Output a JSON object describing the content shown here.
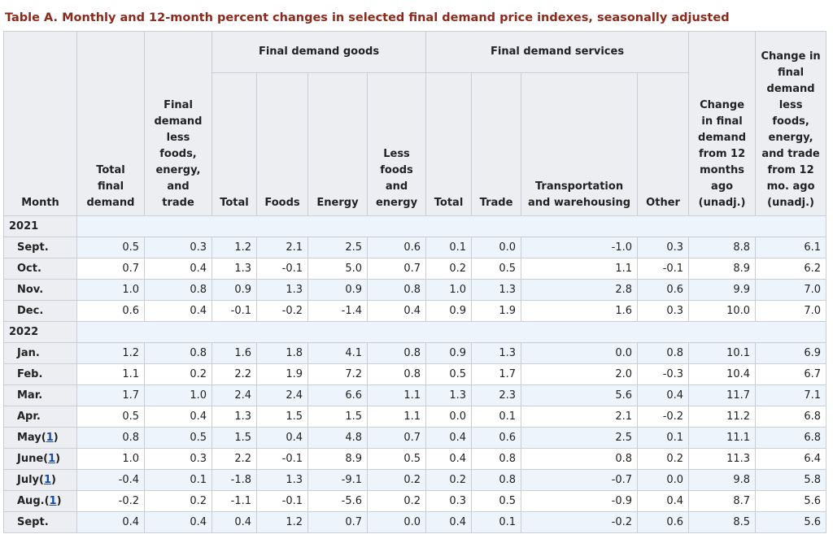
{
  "title": "Table A. Monthly and 12-month percent changes in selected final demand price indexes, seasonally adjusted",
  "headers": {
    "month": "Month",
    "total_final_demand": "Total final demand",
    "fd_less": "Final demand less foods, energy, and trade",
    "goods_group": "Final demand goods",
    "services_group": "Final demand services",
    "goods_total": "Total",
    "goods_foods": "Foods",
    "goods_energy": "Energy",
    "goods_less": "Less foods and energy",
    "serv_total": "Total",
    "serv_trade": "Trade",
    "serv_transport": "Transportation and warehousing",
    "serv_other": "Other",
    "change_12": "Change in final demand from 12 months ago (unadj.)",
    "change_less": "Change in final demand less foods, energy, and trade from 12 mo. ago (unadj.)"
  },
  "sections": [
    {
      "year": "2021",
      "rows": [
        {
          "month": "Sept.",
          "footnote": "",
          "values": [
            "0.5",
            "0.3",
            "1.2",
            "2.1",
            "2.5",
            "0.6",
            "0.1",
            "0.0",
            "-1.0",
            "0.3",
            "8.8",
            "6.1"
          ]
        },
        {
          "month": "Oct.",
          "footnote": "",
          "values": [
            "0.7",
            "0.4",
            "1.3",
            "-0.1",
            "5.0",
            "0.7",
            "0.2",
            "0.5",
            "1.1",
            "-0.1",
            "8.9",
            "6.2"
          ]
        },
        {
          "month": "Nov.",
          "footnote": "",
          "values": [
            "1.0",
            "0.8",
            "0.9",
            "1.3",
            "0.9",
            "0.8",
            "1.0",
            "1.3",
            "2.8",
            "0.6",
            "9.9",
            "7.0"
          ]
        },
        {
          "month": "Dec.",
          "footnote": "",
          "values": [
            "0.6",
            "0.4",
            "-0.1",
            "-0.2",
            "-1.4",
            "0.4",
            "0.9",
            "1.9",
            "1.6",
            "0.3",
            "10.0",
            "7.0"
          ]
        }
      ]
    },
    {
      "year": "2022",
      "rows": [
        {
          "month": "Jan.",
          "footnote": "",
          "values": [
            "1.2",
            "0.8",
            "1.6",
            "1.8",
            "4.1",
            "0.8",
            "0.9",
            "1.3",
            "0.0",
            "0.8",
            "10.1",
            "6.9"
          ]
        },
        {
          "month": "Feb.",
          "footnote": "",
          "values": [
            "1.1",
            "0.2",
            "2.2",
            "1.9",
            "7.2",
            "0.8",
            "0.5",
            "1.7",
            "2.0",
            "-0.3",
            "10.4",
            "6.7"
          ]
        },
        {
          "month": "Mar.",
          "footnote": "",
          "values": [
            "1.7",
            "1.0",
            "2.4",
            "2.4",
            "6.6",
            "1.1",
            "1.3",
            "2.3",
            "5.6",
            "0.4",
            "11.7",
            "7.1"
          ]
        },
        {
          "month": "Apr.",
          "footnote": "",
          "values": [
            "0.5",
            "0.4",
            "1.3",
            "1.5",
            "1.5",
            "1.1",
            "0.0",
            "0.1",
            "2.1",
            "-0.2",
            "11.2",
            "6.8"
          ]
        },
        {
          "month": "May",
          "footnote": "1",
          "values": [
            "0.8",
            "0.5",
            "1.5",
            "0.4",
            "4.8",
            "0.7",
            "0.4",
            "0.6",
            "2.5",
            "0.1",
            "11.1",
            "6.8"
          ]
        },
        {
          "month": "June",
          "footnote": "1",
          "values": [
            "1.0",
            "0.3",
            "2.2",
            "-0.1",
            "8.9",
            "0.5",
            "0.4",
            "0.8",
            "0.8",
            "0.2",
            "11.3",
            "6.4"
          ]
        },
        {
          "month": "July",
          "footnote": "1",
          "values": [
            "-0.4",
            "0.1",
            "-1.8",
            "1.3",
            "-9.1",
            "0.2",
            "0.2",
            "0.8",
            "-0.7",
            "0.0",
            "9.8",
            "5.8"
          ]
        },
        {
          "month": "Aug.",
          "footnote": "1",
          "values": [
            "-0.2",
            "0.2",
            "-1.1",
            "-0.1",
            "-5.6",
            "0.2",
            "0.3",
            "0.5",
            "-0.9",
            "0.4",
            "8.7",
            "5.6"
          ]
        },
        {
          "month": "Sept.",
          "footnote": "",
          "values": [
            "0.4",
            "0.4",
            "0.4",
            "1.2",
            "0.7",
            "0.0",
            "0.4",
            "0.1",
            "-0.2",
            "0.6",
            "8.5",
            "5.6"
          ]
        }
      ]
    }
  ],
  "colors": {
    "title": "#8b2a1b",
    "header_bg": "#eceef2",
    "stripe": "#eef4fb",
    "link": "#1a4aa0"
  }
}
